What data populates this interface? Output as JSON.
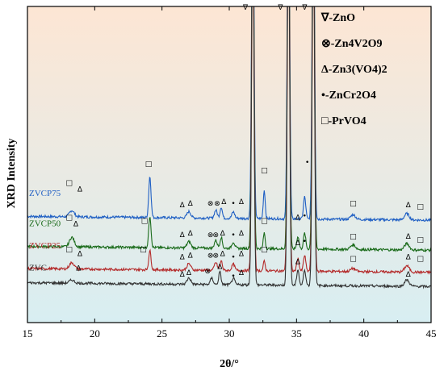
{
  "chart_data": {
    "type": "line",
    "xlabel": "2θ/°",
    "ylabel": "XRD Intensity",
    "xlim": [
      15,
      45
    ],
    "xticks": [
      "15",
      "20",
      "25",
      "30",
      "35",
      "40",
      "45"
    ],
    "background": {
      "top": "#fde6d4",
      "bottom": "#d8eef2"
    },
    "legend": [
      {
        "symbol": "∇",
        "text": "∇-ZnO"
      },
      {
        "symbol": "⊗",
        "text": "⊗-Zn4V2O9"
      },
      {
        "symbol": "Δ",
        "text": "Δ-Zn3(VO4)2"
      },
      {
        "symbol": "•",
        "text": "•-ZnCr2O4"
      },
      {
        "symbol": "□",
        "text": "□-PrVO4"
      }
    ],
    "series": [
      {
        "name": "ZVCP75",
        "color": "#1f5fc4",
        "baseline": 0.33,
        "peaks": [
          [
            18.3,
            0.02,
            0.25
          ],
          [
            24.1,
            0.13,
            0.12
          ],
          [
            27.0,
            0.02,
            0.2
          ],
          [
            29.0,
            0.025,
            0.15
          ],
          [
            29.4,
            0.035,
            0.12
          ],
          [
            30.3,
            0.02,
            0.15
          ],
          [
            31.75,
            1.2,
            0.12
          ],
          [
            32.6,
            0.09,
            0.1
          ],
          [
            34.4,
            1.2,
            0.12
          ],
          [
            35.6,
            0.07,
            0.12
          ],
          [
            36.25,
            1.2,
            0.12
          ],
          [
            39.2,
            0.015,
            0.25
          ],
          [
            43.2,
            0.02,
            0.25
          ]
        ]
      },
      {
        "name": "ZVCP50",
        "color": "#1a6b1a",
        "baseline": 0.235,
        "peaks": [
          [
            18.3,
            0.03,
            0.25
          ],
          [
            24.1,
            0.1,
            0.12
          ],
          [
            27.0,
            0.02,
            0.2
          ],
          [
            29.0,
            0.025,
            0.15
          ],
          [
            29.4,
            0.035,
            0.12
          ],
          [
            30.3,
            0.02,
            0.15
          ],
          [
            31.75,
            1.2,
            0.12
          ],
          [
            32.6,
            0.05,
            0.1
          ],
          [
            34.4,
            1.2,
            0.12
          ],
          [
            35.1,
            0.04,
            0.12
          ],
          [
            35.6,
            0.05,
            0.12
          ],
          [
            36.25,
            1.2,
            0.12
          ],
          [
            39.2,
            0.015,
            0.25
          ],
          [
            43.2,
            0.02,
            0.25
          ]
        ]
      },
      {
        "name": "ZVCP25",
        "color": "#b42a2a",
        "baseline": 0.165,
        "peaks": [
          [
            18.3,
            0.02,
            0.25
          ],
          [
            24.1,
            0.06,
            0.12
          ],
          [
            27.0,
            0.02,
            0.2
          ],
          [
            29.0,
            0.025,
            0.15
          ],
          [
            29.4,
            0.03,
            0.12
          ],
          [
            30.3,
            0.02,
            0.15
          ],
          [
            31.75,
            1.2,
            0.12
          ],
          [
            32.6,
            0.03,
            0.1
          ],
          [
            34.4,
            1.2,
            0.12
          ],
          [
            35.1,
            0.04,
            0.12
          ],
          [
            35.6,
            0.05,
            0.12
          ],
          [
            36.25,
            1.2,
            0.12
          ],
          [
            39.2,
            0.01,
            0.25
          ],
          [
            43.2,
            0.02,
            0.25
          ]
        ]
      },
      {
        "name": "ZVC",
        "color": "#333333",
        "baseline": 0.12,
        "peaks": [
          [
            18.3,
            0.01,
            0.25
          ],
          [
            27.0,
            0.02,
            0.2
          ],
          [
            28.7,
            0.02,
            0.15
          ],
          [
            29.3,
            0.04,
            0.12
          ],
          [
            30.3,
            0.02,
            0.15
          ],
          [
            31.75,
            1.2,
            0.12
          ],
          [
            34.4,
            1.2,
            0.12
          ],
          [
            35.1,
            0.05,
            0.12
          ],
          [
            35.6,
            0.05,
            0.12
          ],
          [
            36.25,
            1.2,
            0.12
          ],
          [
            43.2,
            0.02,
            0.25
          ]
        ]
      }
    ],
    "markers": [
      {
        "symbol": "∇",
        "x": 31.2,
        "y": 0.99
      },
      {
        "symbol": "∇",
        "x": 33.8,
        "y": 0.99
      },
      {
        "symbol": "∇",
        "x": 35.6,
        "y": 0.99
      },
      {
        "symbol": "□",
        "x": 18.1,
        "y": 0.435
      },
      {
        "symbol": "Δ",
        "x": 18.9,
        "y": 0.415
      },
      {
        "symbol": "□",
        "x": 24.0,
        "y": 0.495
      },
      {
        "symbol": "Δ",
        "x": 26.5,
        "y": 0.365
      },
      {
        "symbol": "Δ",
        "x": 27.1,
        "y": 0.37
      },
      {
        "symbol": "⊗",
        "x": 28.6,
        "y": 0.37
      },
      {
        "symbol": "⊗",
        "x": 29.1,
        "y": 0.37
      },
      {
        "symbol": "Δ",
        "x": 29.6,
        "y": 0.375
      },
      {
        "symbol": "•",
        "x": 30.3,
        "y": 0.37
      },
      {
        "symbol": "Δ",
        "x": 30.9,
        "y": 0.375
      },
      {
        "symbol": "□",
        "x": 32.6,
        "y": 0.475
      },
      {
        "symbol": "•",
        "x": 35.8,
        "y": 0.5
      },
      {
        "symbol": "□",
        "x": 39.2,
        "y": 0.37
      },
      {
        "symbol": "Δ",
        "x": 43.3,
        "y": 0.365
      },
      {
        "symbol": "□",
        "x": 44.2,
        "y": 0.36
      },
      {
        "symbol": "□",
        "x": 18.1,
        "y": 0.325
      },
      {
        "symbol": "Δ",
        "x": 18.6,
        "y": 0.305
      },
      {
        "symbol": "□",
        "x": 23.7,
        "y": 0.315
      },
      {
        "symbol": "Δ",
        "x": 26.5,
        "y": 0.27
      },
      {
        "symbol": "Δ",
        "x": 27.1,
        "y": 0.275
      },
      {
        "symbol": "⊗",
        "x": 28.6,
        "y": 0.27
      },
      {
        "symbol": "⊗",
        "x": 29.0,
        "y": 0.27
      },
      {
        "symbol": "Δ",
        "x": 29.5,
        "y": 0.275
      },
      {
        "symbol": "•",
        "x": 30.3,
        "y": 0.27
      },
      {
        "symbol": "Δ",
        "x": 30.9,
        "y": 0.275
      },
      {
        "symbol": "□",
        "x": 32.6,
        "y": 0.315
      },
      {
        "symbol": "Δ",
        "x": 35.1,
        "y": 0.325
      },
      {
        "symbol": "•",
        "x": 35.6,
        "y": 0.33
      },
      {
        "symbol": "□",
        "x": 39.2,
        "y": 0.265
      },
      {
        "symbol": "Δ",
        "x": 43.3,
        "y": 0.265
      },
      {
        "symbol": "□",
        "x": 44.2,
        "y": 0.255
      },
      {
        "symbol": "□",
        "x": 18.1,
        "y": 0.225
      },
      {
        "symbol": "Δ",
        "x": 18.9,
        "y": 0.21
      },
      {
        "symbol": "□",
        "x": 23.6,
        "y": 0.225
      },
      {
        "symbol": "Δ",
        "x": 26.5,
        "y": 0.2
      },
      {
        "symbol": "Δ",
        "x": 27.1,
        "y": 0.205
      },
      {
        "symbol": "⊗",
        "x": 28.6,
        "y": 0.205
      },
      {
        "symbol": "⊗",
        "x": 29.0,
        "y": 0.205
      },
      {
        "symbol": "Δ",
        "x": 29.5,
        "y": 0.21
      },
      {
        "symbol": "•",
        "x": 30.3,
        "y": 0.2
      },
      {
        "symbol": "Δ",
        "x": 30.9,
        "y": 0.21
      },
      {
        "symbol": "□",
        "x": 32.6,
        "y": 0.225
      },
      {
        "symbol": "Δ",
        "x": 35.1,
        "y": 0.245
      },
      {
        "symbol": "•",
        "x": 35.6,
        "y": 0.25
      },
      {
        "symbol": "□",
        "x": 39.2,
        "y": 0.195
      },
      {
        "symbol": "Δ",
        "x": 43.3,
        "y": 0.2
      },
      {
        "symbol": "□",
        "x": 44.2,
        "y": 0.195
      },
      {
        "symbol": "Δ",
        "x": 18.8,
        "y": 0.165
      },
      {
        "symbol": "Δ",
        "x": 26.5,
        "y": 0.145
      },
      {
        "symbol": "Δ",
        "x": 27.0,
        "y": 0.15
      },
      {
        "symbol": "⊗",
        "x": 28.4,
        "y": 0.155
      },
      {
        "symbol": "Δ",
        "x": 29.3,
        "y": 0.17
      },
      {
        "symbol": "•",
        "x": 30.3,
        "y": 0.14
      },
      {
        "symbol": "Δ",
        "x": 30.9,
        "y": 0.15
      },
      {
        "symbol": "Δ",
        "x": 35.1,
        "y": 0.185
      },
      {
        "symbol": "Δ",
        "x": 43.3,
        "y": 0.145
      }
    ]
  }
}
